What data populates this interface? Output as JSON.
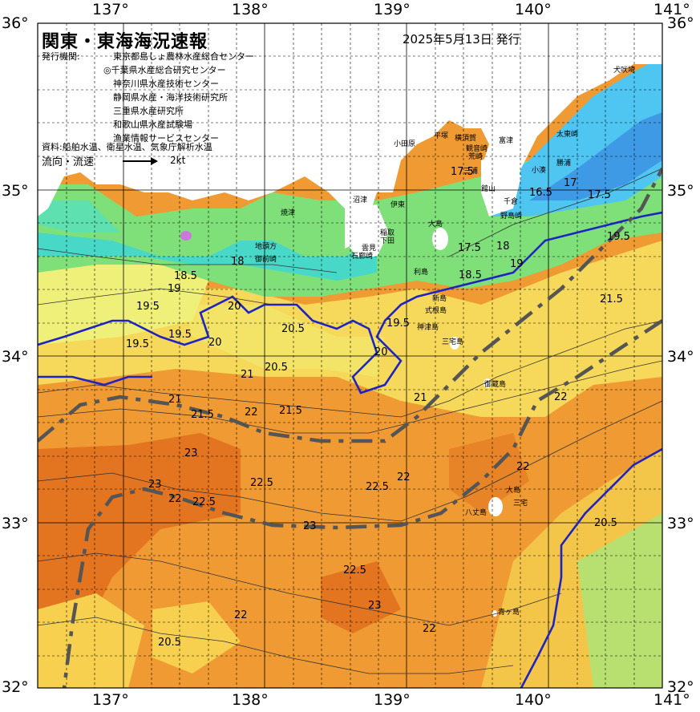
{
  "header": {
    "title": "関東・東海海況速報",
    "date": "2025年5月13日 発行"
  },
  "issuers": {
    "label": "発行機関:",
    "items": [
      "東京都島しょ農林水産総合センター",
      "◎千葉県水産総合研究センター",
      "神奈川県水産技術センター",
      "静岡県水産・海洋技術研究所",
      "三重県水産研究所",
      "和歌山県水産試験場",
      "漁業情報サービスセンター"
    ]
  },
  "source": "資料:船舶水温、衛星水温、気象庁解析水温",
  "flow_legend": {
    "label": "流向・流速",
    "speed": "2kt"
  },
  "axes": {
    "top_lon": [
      "137°",
      "138°",
      "139°",
      "140°",
      "141°"
    ],
    "bottom_lon": [
      "137°",
      "138°",
      "139°",
      "140°",
      "141°"
    ],
    "left_lat": [
      "36°",
      "35°",
      "34°",
      "33°",
      "32°"
    ],
    "right_lat": [
      "36°",
      "35°",
      "34°",
      "33°",
      "32°"
    ]
  },
  "places": [
    "犬吠埼",
    "太東崎",
    "勝浦",
    "小湊",
    "館山",
    "千倉",
    "野島崎",
    "富津",
    "観音崎",
    "荒崎",
    "横須賀",
    "平塚",
    "小田原",
    "三浦",
    "伊東",
    "稲取",
    "下田",
    "雲見",
    "石廊崎",
    "沼津",
    "焼津",
    "地頭方",
    "御前崎",
    "大島",
    "利島",
    "新島",
    "式根島",
    "神津島",
    "三宅島",
    "御蔵島",
    "八丈島",
    "青ヶ島",
    "大島",
    "三宅"
  ],
  "isotherms": [
    "17.5",
    "18",
    "18.5",
    "19",
    "19.5",
    "20",
    "20.5",
    "21",
    "21.5",
    "22",
    "22.5",
    "23",
    "16.5",
    "17"
  ],
  "colors": {
    "t16": "#3f9ae6",
    "t17": "#4fd0f0",
    "t18": "#56e08c",
    "t19": "#9fe070",
    "t19_5": "#f0ee6a",
    "t20": "#f8d85a",
    "t21": "#f5a640",
    "t22": "#ee8a20",
    "t23": "#e06818",
    "land": "#ffffff",
    "current": "#555555",
    "contour20": "#1f24c0"
  }
}
